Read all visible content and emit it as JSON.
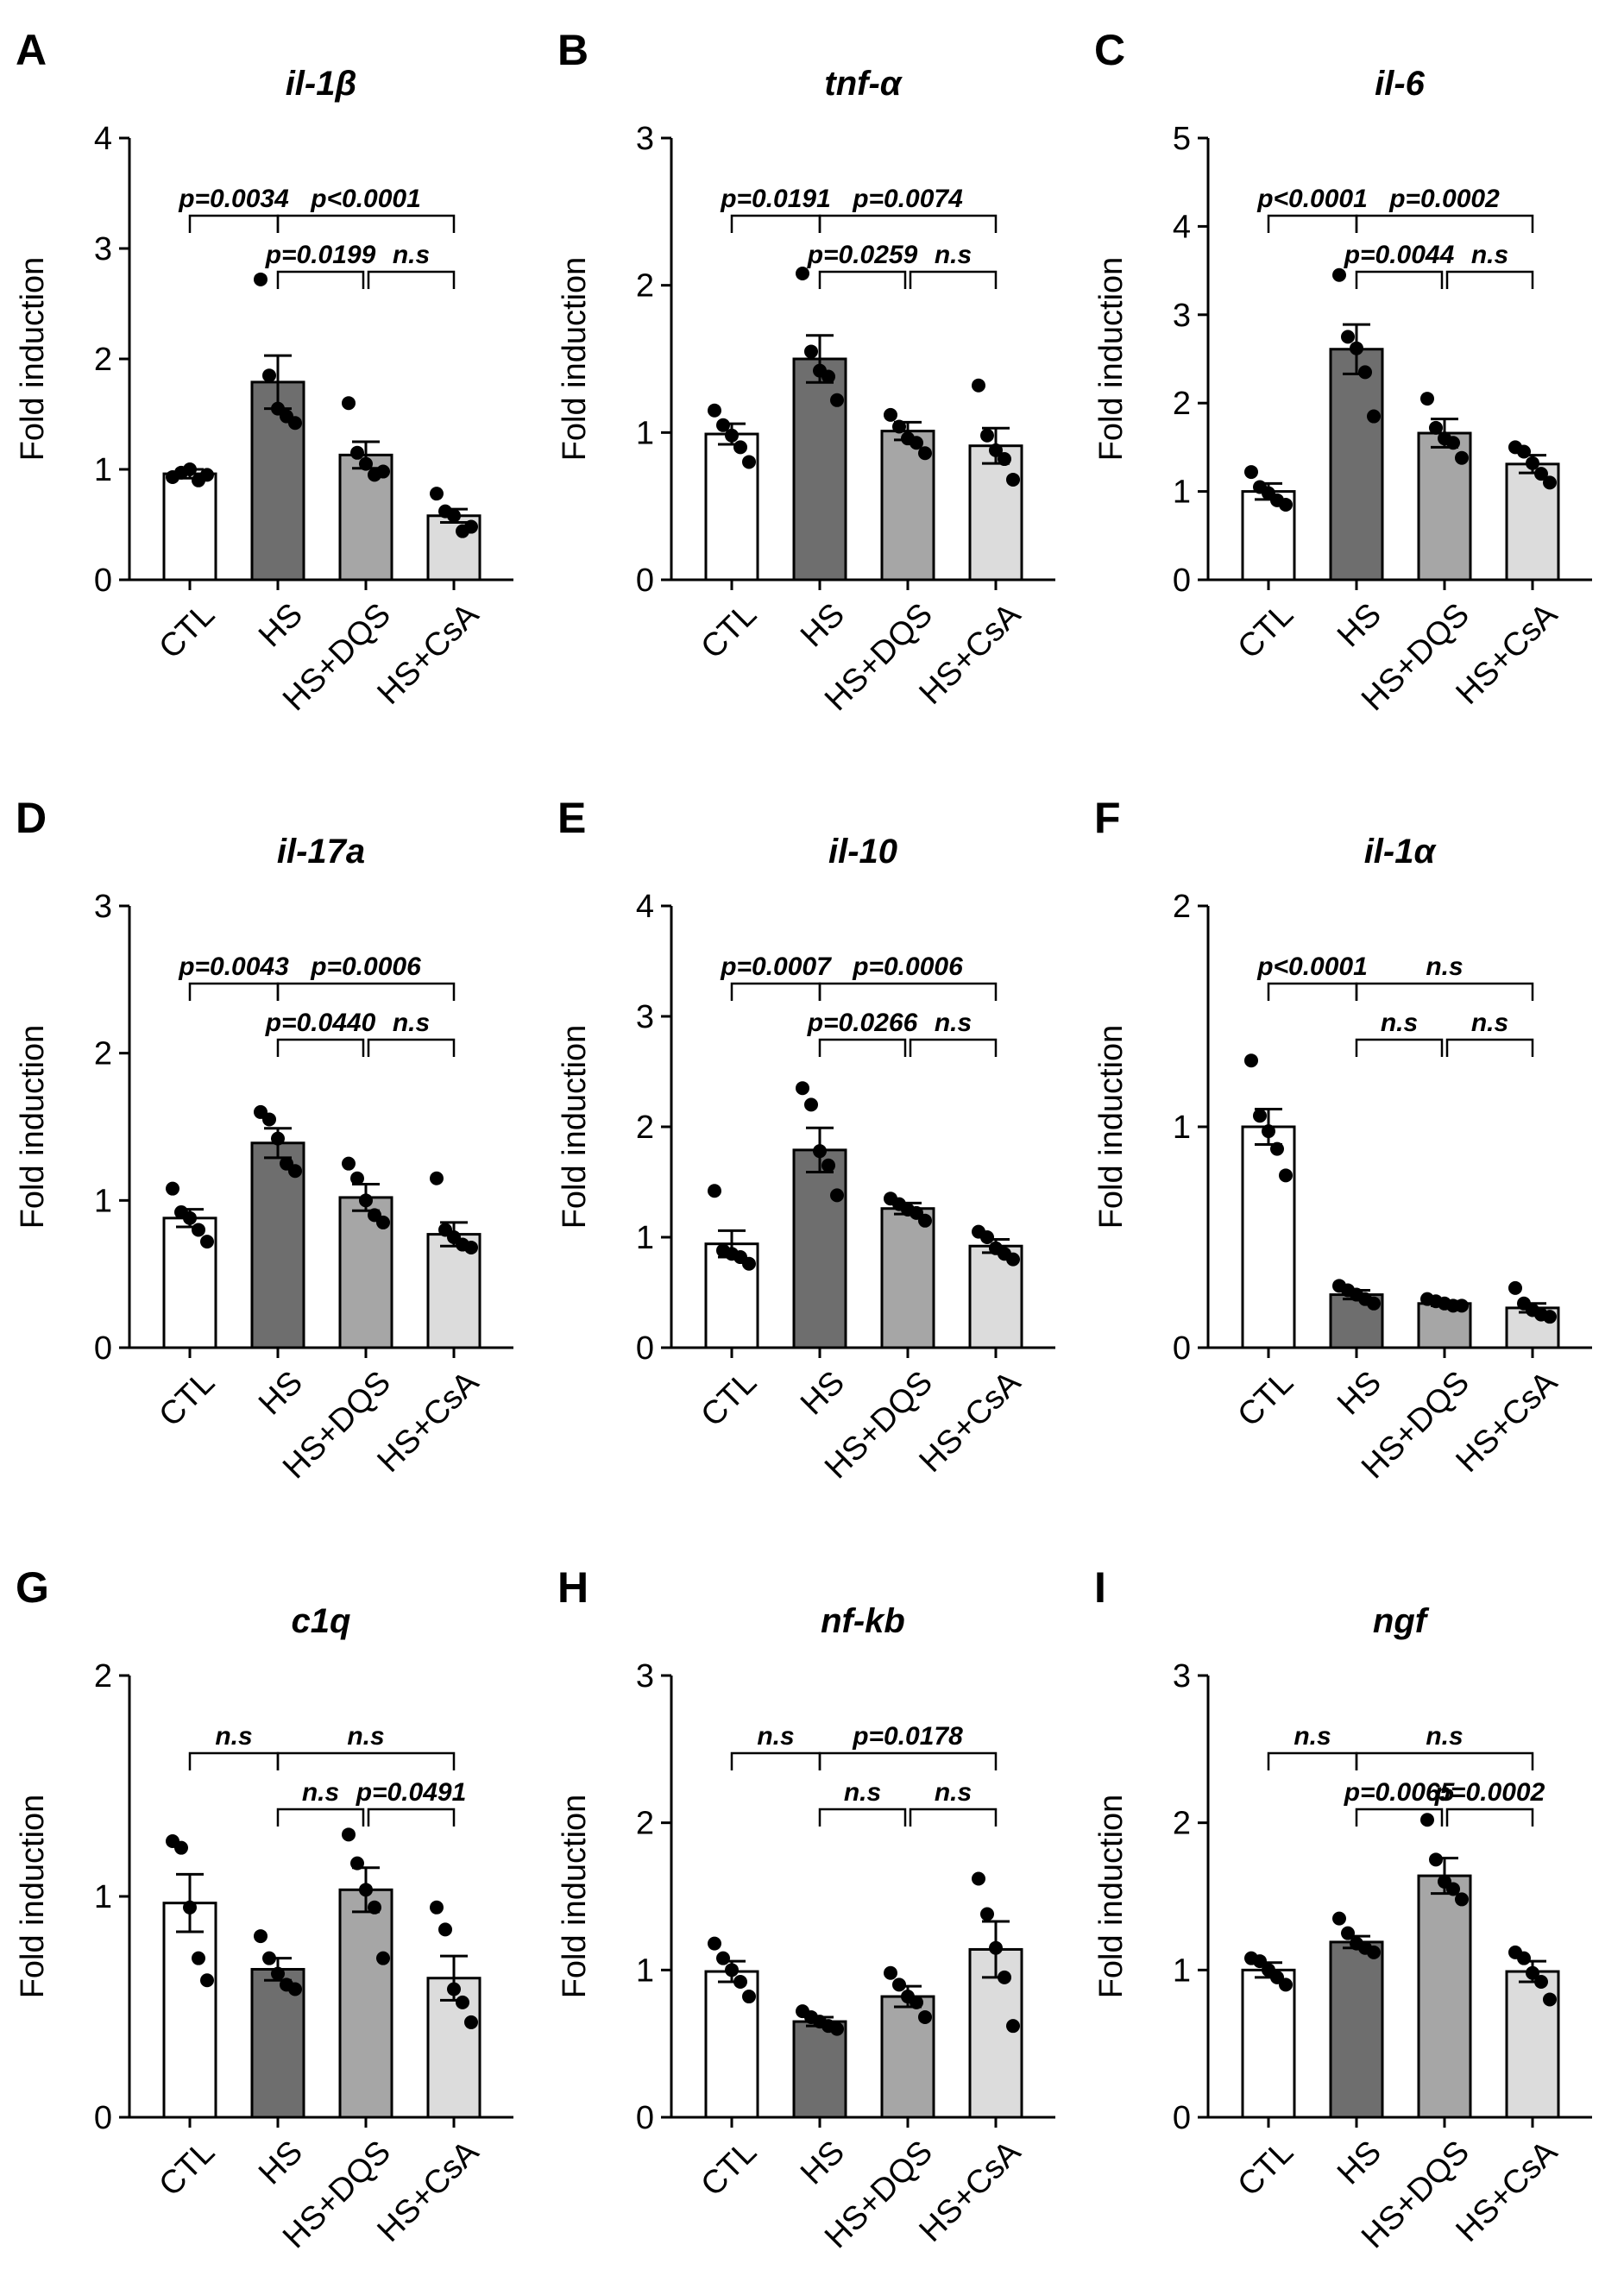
{
  "chart_data": [
    {
      "panel": "A",
      "title": "il-1β",
      "type": "bar",
      "ylabel": "Fold induction",
      "ylim": [
        0,
        4
      ],
      "yticks": [
        "0",
        "1",
        "2",
        "3",
        "4"
      ],
      "categories": [
        "CTL",
        "HS",
        "HS+DQS",
        "HS+CsA"
      ],
      "bar_colors": [
        "#ffffff",
        "#6e6e6e",
        "#a6a6a6",
        "#dcdcdc"
      ],
      "values": [
        0.96,
        1.79,
        1.13,
        0.58
      ],
      "errors": [
        0.04,
        0.24,
        0.12,
        0.06
      ],
      "points": [
        [
          0.93,
          0.97,
          1.0,
          0.9,
          0.95
        ],
        [
          2.72,
          1.85,
          1.55,
          1.48,
          1.42
        ],
        [
          1.6,
          1.15,
          1.05,
          0.95,
          0.98
        ],
        [
          0.78,
          0.62,
          0.58,
          0.44,
          0.48
        ]
      ],
      "brackets": [
        {
          "from": 0,
          "to": 1,
          "level": 0,
          "label": "p=0.0034"
        },
        {
          "from": 1,
          "to": 3,
          "level": 0,
          "label": "p<0.0001"
        },
        {
          "from": 1,
          "to": 2,
          "level": 1,
          "label": "p=0.0199"
        },
        {
          "from": 2,
          "to": 3,
          "level": 1,
          "label": "n.s"
        }
      ]
    },
    {
      "panel": "B",
      "title": "tnf-α",
      "type": "bar",
      "ylabel": "Fold induction",
      "ylim": [
        0,
        3
      ],
      "yticks": [
        "0",
        "1",
        "2",
        "3"
      ],
      "categories": [
        "CTL",
        "HS",
        "HS+DQS",
        "HS+CsA"
      ],
      "bar_colors": [
        "#ffffff",
        "#6e6e6e",
        "#a6a6a6",
        "#dcdcdc"
      ],
      "values": [
        0.99,
        1.5,
        1.01,
        0.91
      ],
      "errors": [
        0.07,
        0.16,
        0.06,
        0.12
      ],
      "points": [
        [
          1.15,
          1.05,
          0.98,
          0.9,
          0.8
        ],
        [
          2.08,
          1.55,
          1.42,
          1.38,
          1.22
        ],
        [
          1.12,
          1.04,
          0.96,
          0.93,
          0.86
        ],
        [
          1.32,
          0.98,
          0.88,
          0.82,
          0.68
        ]
      ],
      "brackets": [
        {
          "from": 0,
          "to": 1,
          "level": 0,
          "label": "p=0.0191"
        },
        {
          "from": 1,
          "to": 3,
          "level": 0,
          "label": "p=0.0074"
        },
        {
          "from": 1,
          "to": 2,
          "level": 1,
          "label": "p=0.0259"
        },
        {
          "from": 2,
          "to": 3,
          "level": 1,
          "label": "n.s"
        }
      ]
    },
    {
      "panel": "C",
      "title": "il-6",
      "type": "bar",
      "ylabel": "Fold induction",
      "ylim": [
        0,
        5
      ],
      "yticks": [
        "0",
        "1",
        "2",
        "3",
        "4",
        "5"
      ],
      "categories": [
        "CTL",
        "HS",
        "HS+DQS",
        "HS+CsA"
      ],
      "bar_colors": [
        "#ffffff",
        "#6e6e6e",
        "#a6a6a6",
        "#dcdcdc"
      ],
      "values": [
        1.0,
        2.61,
        1.66,
        1.31
      ],
      "errors": [
        0.09,
        0.28,
        0.16,
        0.1
      ],
      "points": [
        [
          1.22,
          1.05,
          0.98,
          0.9,
          0.85
        ],
        [
          3.45,
          2.75,
          2.62,
          2.35,
          1.85
        ],
        [
          2.05,
          1.72,
          1.6,
          1.55,
          1.38
        ],
        [
          1.5,
          1.45,
          1.32,
          1.2,
          1.1
        ]
      ],
      "brackets": [
        {
          "from": 0,
          "to": 1,
          "level": 0,
          "label": "p<0.0001"
        },
        {
          "from": 1,
          "to": 3,
          "level": 0,
          "label": "p=0.0002"
        },
        {
          "from": 1,
          "to": 2,
          "level": 1,
          "label": "p=0.0044"
        },
        {
          "from": 2,
          "to": 3,
          "level": 1,
          "label": "n.s"
        }
      ]
    },
    {
      "panel": "D",
      "title": "il-17a",
      "type": "bar",
      "ylabel": "Fold induction",
      "ylim": [
        0,
        3
      ],
      "yticks": [
        "0",
        "1",
        "2",
        "3"
      ],
      "categories": [
        "CTL",
        "HS",
        "HS+DQS",
        "HS+CsA"
      ],
      "bar_colors": [
        "#ffffff",
        "#6e6e6e",
        "#a6a6a6",
        "#dcdcdc"
      ],
      "values": [
        0.88,
        1.39,
        1.02,
        0.77
      ],
      "errors": [
        0.06,
        0.1,
        0.09,
        0.08
      ],
      "points": [
        [
          1.08,
          0.92,
          0.88,
          0.8,
          0.72
        ],
        [
          1.6,
          1.55,
          1.42,
          1.25,
          1.2
        ],
        [
          1.25,
          1.15,
          1.0,
          0.9,
          0.85
        ],
        [
          1.15,
          0.8,
          0.75,
          0.7,
          0.68
        ]
      ],
      "brackets": [
        {
          "from": 0,
          "to": 1,
          "level": 0,
          "label": "p=0.0043"
        },
        {
          "from": 1,
          "to": 3,
          "level": 0,
          "label": "p=0.0006"
        },
        {
          "from": 1,
          "to": 2,
          "level": 1,
          "label": "p=0.0440"
        },
        {
          "from": 2,
          "to": 3,
          "level": 1,
          "label": "n.s"
        }
      ]
    },
    {
      "panel": "E",
      "title": "il-10",
      "type": "bar",
      "ylabel": "Fold induction",
      "ylim": [
        0,
        4
      ],
      "yticks": [
        "0",
        "1",
        "2",
        "3",
        "4"
      ],
      "categories": [
        "CTL",
        "HS",
        "HS+DQS",
        "HS+CsA"
      ],
      "bar_colors": [
        "#ffffff",
        "#6e6e6e",
        "#a6a6a6",
        "#dcdcdc"
      ],
      "values": [
        0.94,
        1.79,
        1.26,
        0.92
      ],
      "errors": [
        0.12,
        0.2,
        0.05,
        0.06
      ],
      "points": [
        [
          1.42,
          0.88,
          0.85,
          0.82,
          0.76
        ],
        [
          2.35,
          2.2,
          1.78,
          1.65,
          1.38
        ],
        [
          1.35,
          1.3,
          1.25,
          1.22,
          1.15
        ],
        [
          1.05,
          1.0,
          0.9,
          0.85,
          0.8
        ]
      ],
      "brackets": [
        {
          "from": 0,
          "to": 1,
          "level": 0,
          "label": "p=0.0007"
        },
        {
          "from": 1,
          "to": 3,
          "level": 0,
          "label": "p=0.0006"
        },
        {
          "from": 1,
          "to": 2,
          "level": 1,
          "label": "p=0.0266"
        },
        {
          "from": 2,
          "to": 3,
          "level": 1,
          "label": "n.s"
        }
      ]
    },
    {
      "panel": "F",
      "title": "il-1α",
      "type": "bar",
      "ylabel": "Fold induction",
      "ylim": [
        0,
        2
      ],
      "yticks": [
        "0",
        "1",
        "2"
      ],
      "categories": [
        "CTL",
        "HS",
        "HS+DQS",
        "HS+CsA"
      ],
      "bar_colors": [
        "#ffffff",
        "#6e6e6e",
        "#a6a6a6",
        "#dcdcdc"
      ],
      "values": [
        1.0,
        0.24,
        0.2,
        0.18
      ],
      "errors": [
        0.08,
        0.02,
        0.01,
        0.02
      ],
      "points": [
        [
          1.3,
          1.05,
          0.98,
          0.9,
          0.78
        ],
        [
          0.28,
          0.26,
          0.24,
          0.22,
          0.2
        ],
        [
          0.22,
          0.21,
          0.2,
          0.19,
          0.19
        ],
        [
          0.27,
          0.2,
          0.17,
          0.15,
          0.14
        ]
      ],
      "brackets": [
        {
          "from": 0,
          "to": 1,
          "level": 0,
          "label": "p<0.0001"
        },
        {
          "from": 1,
          "to": 3,
          "level": 0,
          "label": "n.s"
        },
        {
          "from": 1,
          "to": 2,
          "level": 1,
          "label": "n.s"
        },
        {
          "from": 2,
          "to": 3,
          "level": 1,
          "label": "n.s"
        }
      ]
    },
    {
      "panel": "G",
      "title": "c1q",
      "type": "bar",
      "ylabel": "Fold induction",
      "ylim": [
        0,
        2
      ],
      "yticks": [
        "0",
        "1",
        "2"
      ],
      "categories": [
        "CTL",
        "HS",
        "HS+DQS",
        "HS+CsA"
      ],
      "bar_colors": [
        "#ffffff",
        "#6e6e6e",
        "#a6a6a6",
        "#dcdcdc"
      ],
      "values": [
        0.97,
        0.67,
        1.03,
        0.63
      ],
      "errors": [
        0.13,
        0.05,
        0.1,
        0.1
      ],
      "points": [
        [
          1.25,
          1.22,
          0.95,
          0.72,
          0.62
        ],
        [
          0.82,
          0.72,
          0.65,
          0.6,
          0.58
        ],
        [
          1.28,
          1.15,
          1.03,
          0.95,
          0.72
        ],
        [
          0.95,
          0.85,
          0.58,
          0.52,
          0.43
        ]
      ],
      "brackets": [
        {
          "from": 0,
          "to": 1,
          "level": 0,
          "label": "n.s"
        },
        {
          "from": 1,
          "to": 3,
          "level": 0,
          "label": "n.s"
        },
        {
          "from": 1,
          "to": 2,
          "level": 1,
          "label": "n.s"
        },
        {
          "from": 2,
          "to": 3,
          "level": 1,
          "label": "p=0.0491"
        }
      ]
    },
    {
      "panel": "H",
      "title": "nf-kb",
      "type": "bar",
      "ylabel": "Fold induction",
      "ylim": [
        0,
        3
      ],
      "yticks": [
        "0",
        "1",
        "2",
        "3"
      ],
      "categories": [
        "CTL",
        "HS",
        "HS+DQS",
        "HS+CsA"
      ],
      "bar_colors": [
        "#ffffff",
        "#6e6e6e",
        "#a6a6a6",
        "#dcdcdc"
      ],
      "values": [
        0.99,
        0.65,
        0.82,
        1.14
      ],
      "errors": [
        0.07,
        0.03,
        0.07,
        0.19
      ],
      "points": [
        [
          1.18,
          1.08,
          1.0,
          0.92,
          0.82
        ],
        [
          0.72,
          0.68,
          0.65,
          0.62,
          0.6
        ],
        [
          0.98,
          0.9,
          0.82,
          0.78,
          0.68
        ],
        [
          1.62,
          1.38,
          1.15,
          0.95,
          0.62
        ]
      ],
      "brackets": [
        {
          "from": 0,
          "to": 1,
          "level": 0,
          "label": "n.s"
        },
        {
          "from": 1,
          "to": 3,
          "level": 0,
          "label": "p=0.0178"
        },
        {
          "from": 1,
          "to": 2,
          "level": 1,
          "label": "n.s"
        },
        {
          "from": 2,
          "to": 3,
          "level": 1,
          "label": "n.s"
        }
      ]
    },
    {
      "panel": "I",
      "title": "ngf",
      "type": "bar",
      "ylabel": "Fold induction",
      "ylim": [
        0,
        3
      ],
      "yticks": [
        "0",
        "1",
        "2",
        "3"
      ],
      "categories": [
        "CTL",
        "HS",
        "HS+DQS",
        "HS+CsA"
      ],
      "bar_colors": [
        "#ffffff",
        "#6e6e6e",
        "#a6a6a6",
        "#dcdcdc"
      ],
      "values": [
        1.0,
        1.19,
        1.64,
        0.99
      ],
      "errors": [
        0.05,
        0.04,
        0.12,
        0.07
      ],
      "points": [
        [
          1.08,
          1.06,
          1.0,
          0.95,
          0.9
        ],
        [
          1.35,
          1.25,
          1.18,
          1.15,
          1.12
        ],
        [
          2.02,
          1.75,
          1.6,
          1.55,
          1.48
        ],
        [
          1.12,
          1.08,
          0.98,
          0.92,
          0.8
        ]
      ],
      "brackets": [
        {
          "from": 0,
          "to": 1,
          "level": 0,
          "label": "n.s"
        },
        {
          "from": 1,
          "to": 3,
          "level": 0,
          "label": "n.s"
        },
        {
          "from": 1,
          "to": 2,
          "level": 1,
          "label": "p=0.0065"
        },
        {
          "from": 2,
          "to": 3,
          "level": 1,
          "label": "p=0.0002"
        }
      ]
    }
  ]
}
